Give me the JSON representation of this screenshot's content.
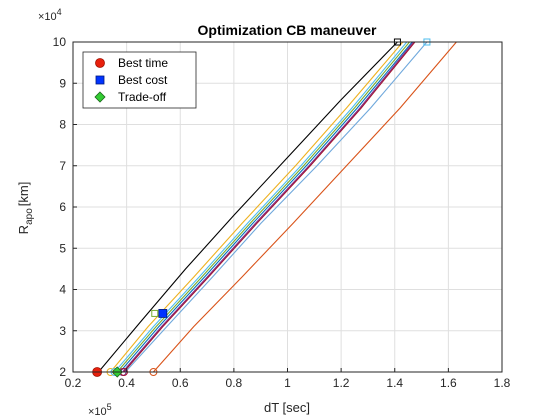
{
  "chart_data": {
    "type": "line",
    "title": "Optimization CB maneuver",
    "xlabel": "dT [sec]",
    "ylabel_main": "R",
    "ylabel_sub": "apo",
    "ylabel_suffix": "[km]",
    "x_multiplier": "×10",
    "x_multiplier_exp": "5",
    "y_multiplier": "×10",
    "y_multiplier_exp": "4",
    "x_scale": 100000,
    "y_scale": 10000,
    "xlim": [
      0.2,
      1.8
    ],
    "ylim": [
      2,
      10
    ],
    "xticks": [
      0.2,
      0.4,
      0.6,
      0.8,
      1,
      1.2,
      1.4,
      1.6,
      1.8
    ],
    "yticks": [
      2,
      3,
      4,
      5,
      6,
      7,
      8,
      9,
      10
    ],
    "grid": true,
    "legend_position": "top-left",
    "legend": [
      {
        "label": "Best time",
        "marker": "circle",
        "color": "#e8200c"
      },
      {
        "label": "Best cost",
        "marker": "square",
        "color": "#0033ff"
      },
      {
        "label": "Trade-off",
        "marker": "diamond",
        "color": "#33cc33"
      }
    ],
    "series": [
      {
        "color": "#000000",
        "x": [
          0.295,
          0.45,
          0.62,
          0.8,
          1.0,
          1.2,
          1.41
        ],
        "y": [
          2,
          3.2,
          4.5,
          5.8,
          7.2,
          8.6,
          10
        ]
      },
      {
        "color": "#edb120",
        "x": [
          0.34,
          0.48,
          0.65,
          0.83,
          1.03,
          1.22,
          1.43
        ],
        "y": [
          2,
          3.1,
          4.3,
          5.6,
          7.0,
          8.4,
          10
        ]
      },
      {
        "color": "#4dbeee",
        "x": [
          0.355,
          0.5,
          0.67,
          0.85,
          1.05,
          1.24,
          1.445
        ],
        "y": [
          2,
          3.1,
          4.3,
          5.6,
          7.0,
          8.4,
          10
        ]
      },
      {
        "color": "#77ac30",
        "x": [
          0.365,
          0.51,
          0.68,
          0.86,
          1.06,
          1.25,
          1.455
        ],
        "y": [
          2,
          3.1,
          4.3,
          5.6,
          7.0,
          8.4,
          10
        ]
      },
      {
        "color": "#0072bd",
        "x": [
          0.375,
          0.52,
          0.69,
          0.87,
          1.07,
          1.26,
          1.465
        ],
        "y": [
          2,
          3.1,
          4.3,
          5.6,
          7.0,
          8.4,
          10
        ]
      },
      {
        "color": "#7e2f8e",
        "x": [
          0.385,
          0.53,
          0.7,
          0.88,
          1.08,
          1.27,
          1.47
        ],
        "y": [
          2,
          3.1,
          4.3,
          5.6,
          7.0,
          8.4,
          10
        ]
      },
      {
        "color": "#a2142f",
        "x": [
          0.39,
          0.535,
          0.705,
          0.885,
          1.085,
          1.275,
          1.475
        ],
        "y": [
          2,
          3.1,
          4.3,
          5.6,
          7.0,
          8.4,
          10
        ]
      },
      {
        "color": "#6fa8dc",
        "x": [
          0.395,
          0.55,
          0.72,
          0.9,
          1.11,
          1.31,
          1.52
        ],
        "y": [
          2,
          3.1,
          4.3,
          5.6,
          7.0,
          8.4,
          10
        ]
      },
      {
        "color": "#d95319",
        "x": [
          0.5,
          0.65,
          0.83,
          1.02,
          1.22,
          1.42,
          1.63
        ],
        "y": [
          2,
          3.1,
          4.3,
          5.6,
          7.0,
          8.4,
          10
        ]
      }
    ],
    "start_markers": [
      {
        "x": 0.34,
        "y": 2,
        "color": "#edb120"
      },
      {
        "x": 0.355,
        "y": 2,
        "color": "#4dbeee"
      },
      {
        "x": 0.385,
        "y": 2,
        "color": "#7e2f8e"
      },
      {
        "x": 0.39,
        "y": 2,
        "color": "#a2142f"
      },
      {
        "x": 0.5,
        "y": 2,
        "color": "#d95319"
      }
    ],
    "end_markers": [
      {
        "x": 1.41,
        "y": 10,
        "color": "#000000"
      },
      {
        "x": 1.52,
        "y": 10,
        "color": "#4dbeee"
      },
      {
        "x": 0.505,
        "y": 3.42,
        "color": "#77ac30"
      }
    ],
    "points": {
      "best_time": {
        "x": 0.29,
        "y": 2
      },
      "best_cost": {
        "x": 0.535,
        "y": 3.42
      },
      "trade_off": {
        "x": 0.365,
        "y": 2
      }
    }
  }
}
